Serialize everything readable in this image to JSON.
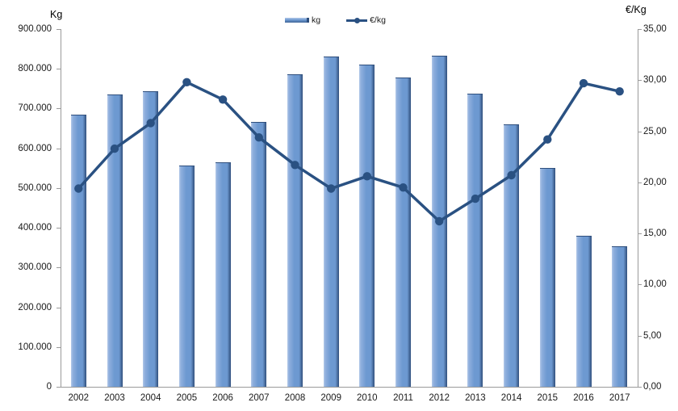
{
  "colors": {
    "bar_fill": "#6d99d1",
    "bar_light": "#b3c9e8",
    "bar_dark": "#2f4f7d",
    "line": "#2a5182",
    "axis": "#9a9a9a",
    "text": "#1a1a1a"
  },
  "chart_data": {
    "type": "bar+line",
    "categories": [
      "2002",
      "2003",
      "2004",
      "2005",
      "2006",
      "2007",
      "2008",
      "2009",
      "2010",
      "2011",
      "2012",
      "2013",
      "2014",
      "2015",
      "2016",
      "2017"
    ],
    "series": [
      {
        "name": "kg",
        "type": "bar",
        "axis": "left",
        "values": [
          683000,
          734000,
          742000,
          554000,
          563000,
          664000,
          785000,
          829000,
          808000,
          777000,
          832000,
          735000,
          658000,
          549000,
          378000,
          352000
        ]
      },
      {
        "name": "€/kg",
        "type": "line",
        "axis": "right",
        "values": [
          19.4,
          23.3,
          25.8,
          29.8,
          28.1,
          24.4,
          21.7,
          19.4,
          20.6,
          19.5,
          16.2,
          18.4,
          20.7,
          24.2,
          29.7,
          28.9
        ]
      }
    ],
    "left_axis": {
      "title": "Kg",
      "min": 0,
      "max": 900000,
      "tick_labels": [
        "0",
        "100.000",
        "200.000",
        "300.000",
        "400.000",
        "500.000",
        "600.000",
        "700.000",
        "800.000",
        "900.000"
      ]
    },
    "right_axis": {
      "title": "€/Kg",
      "min": 0,
      "max": 35,
      "tick_labels": [
        "0,00",
        "5,00",
        "10,00",
        "15,00",
        "20,00",
        "25,00",
        "30,00",
        "35,00"
      ]
    },
    "legend": {
      "position": "top",
      "entries": [
        "kg",
        "€/kg"
      ]
    },
    "grid": false
  }
}
